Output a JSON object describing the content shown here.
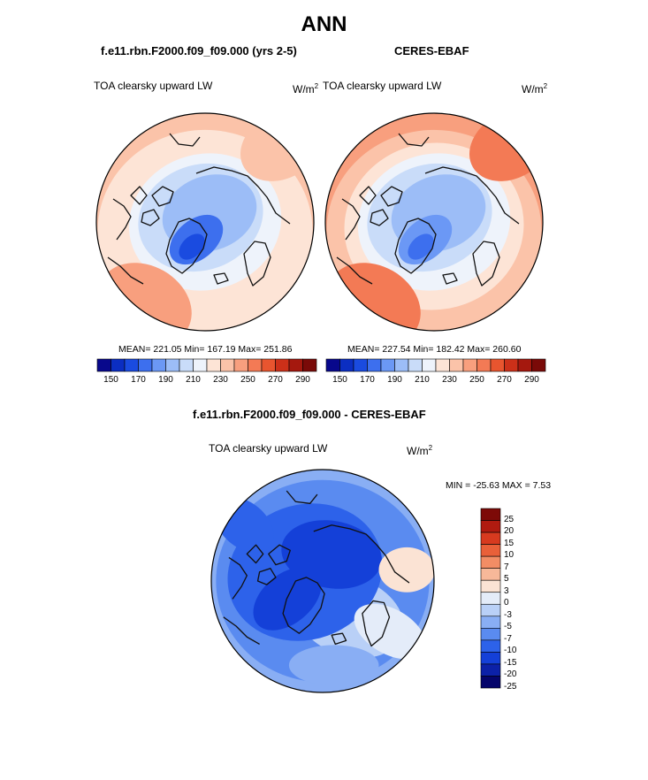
{
  "page_title": "ANN",
  "colors": {
    "abs_scale": [
      "#08088c",
      "#0b2ec2",
      "#1a4be0",
      "#3d6fee",
      "#6b98f5",
      "#9cbdf7",
      "#c9dcf9",
      "#eef3fb",
      "#fde4d6",
      "#fbc3a9",
      "#f89f7e",
      "#f37a55",
      "#e8552f",
      "#cc3019",
      "#a5180e",
      "#7a0a08"
    ],
    "diff_scale": [
      "#05056b",
      "#0c21a8",
      "#1440d8",
      "#2d62ea",
      "#5a8bf0",
      "#89aef4",
      "#b9d0f7",
      "#e4ecf9",
      "#fbe3d4",
      "#f7b899",
      "#f28d65",
      "#e96039",
      "#d73a1f",
      "#b01b10",
      "#7d0a07"
    ]
  },
  "panels": {
    "model": {
      "title": "f.e11.rbn.F2000.f09_f09.000 (yrs 2-5)",
      "variable": "TOA clearsky upward LW",
      "units_base": "W/m",
      "units_exp": "2",
      "stats": "MEAN= 221.05  Min= 167.19  Max= 251.86"
    },
    "obs": {
      "title": "CERES-EBAF",
      "variable": "TOA clearsky upward LW",
      "units_base": "W/m",
      "units_exp": "2",
      "stats": "MEAN= 227.54  Min= 182.42  Max= 260.60"
    },
    "diff": {
      "title": "f.e11.rbn.F2000.f09_f09.000 - CERES-EBAF",
      "variable": "TOA clearsky upward LW",
      "units_base": "W/m",
      "units_exp": "2",
      "stats": "MIN = -25.63 MAX =   7.53"
    }
  },
  "chart_data": [
    {
      "type": "heatmap",
      "projection": "north-polar-stereographic",
      "title": "f.e11.rbn.F2000.f09_f09.000 (yrs 2-5)",
      "variable": "TOA clearsky upward LW",
      "units": "W/m2",
      "mean": 221.05,
      "min": 167.19,
      "max": 251.86,
      "colorbar_labels": [
        "150",
        "170",
        "190",
        "210",
        "230",
        "250",
        "270",
        "290"
      ],
      "colorbar_bins": 16,
      "colorbar_range": [
        140,
        300
      ]
    },
    {
      "type": "heatmap",
      "projection": "north-polar-stereographic",
      "title": "CERES-EBAF",
      "variable": "TOA clearsky upward LW",
      "units": "W/m2",
      "mean": 227.54,
      "min": 182.42,
      "max": 260.6,
      "colorbar_labels": [
        "150",
        "170",
        "190",
        "210",
        "230",
        "250",
        "270",
        "290"
      ],
      "colorbar_bins": 16,
      "colorbar_range": [
        140,
        300
      ]
    },
    {
      "type": "heatmap",
      "projection": "north-polar-stereographic",
      "title": "f.e11.rbn.F2000.f09_f09.000 - CERES-EBAF",
      "variable": "TOA clearsky upward LW",
      "units": "W/m2",
      "min": -25.63,
      "max": 7.53,
      "colorbar_labels": [
        "25",
        "20",
        "15",
        "10",
        "7",
        "5",
        "3",
        "0",
        "-3",
        "-5",
        "-7",
        "-10",
        "-15",
        "-20",
        "-25"
      ],
      "colorbar_orientation": "vertical"
    }
  ]
}
